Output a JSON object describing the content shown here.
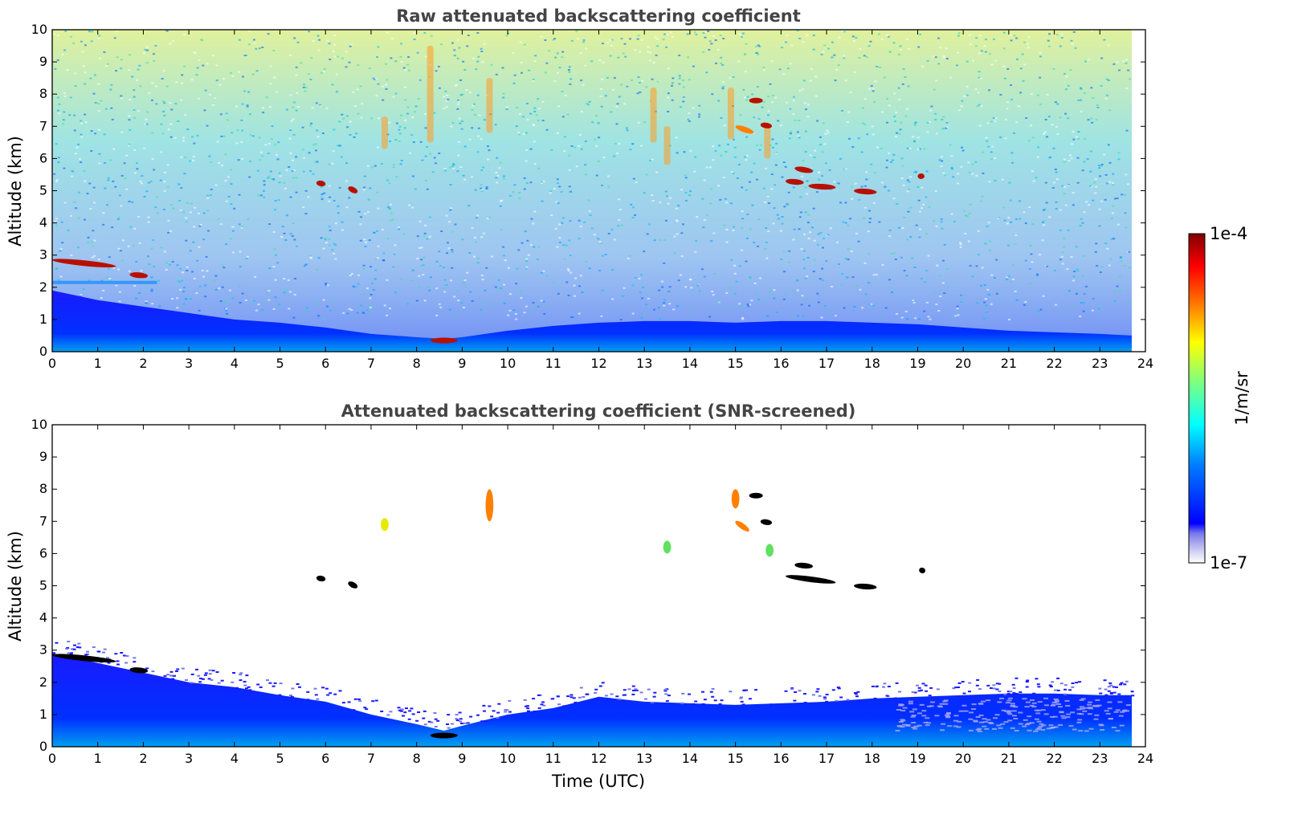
{
  "chart_data": [
    {
      "type": "heatmap",
      "title": "Raw attenuated backscattering coefficient",
      "xlabel": "",
      "ylabel": "Altitude (km)",
      "xlim": [
        0,
        24
      ],
      "ylim": [
        0,
        10
      ],
      "x_ticks": [
        0,
        1,
        2,
        3,
        4,
        5,
        6,
        7,
        8,
        9,
        10,
        11,
        12,
        13,
        14,
        15,
        16,
        17,
        18,
        19,
        20,
        21,
        22,
        23,
        24
      ],
      "y_ticks": [
        0,
        1,
        2,
        3,
        4,
        5,
        6,
        7,
        8,
        9,
        10
      ],
      "data_end_time": 23.7,
      "boundary_layer_top_km": [
        [
          0,
          1.9
        ],
        [
          1,
          1.6
        ],
        [
          2,
          1.4
        ],
        [
          3,
          1.2
        ],
        [
          4,
          1.0
        ],
        [
          5,
          0.9
        ],
        [
          6,
          0.75
        ],
        [
          7,
          0.55
        ],
        [
          8,
          0.45
        ],
        [
          8.6,
          0.4
        ],
        [
          9,
          0.45
        ],
        [
          10,
          0.65
        ],
        [
          11,
          0.8
        ],
        [
          12,
          0.9
        ],
        [
          13,
          0.95
        ],
        [
          14,
          0.95
        ],
        [
          15,
          0.9
        ],
        [
          16,
          0.95
        ],
        [
          17,
          0.95
        ],
        [
          18,
          0.9
        ],
        [
          19,
          0.85
        ],
        [
          20,
          0.75
        ],
        [
          21,
          0.65
        ],
        [
          22,
          0.6
        ],
        [
          23,
          0.55
        ],
        [
          23.7,
          0.5
        ]
      ],
      "aerosol_layers": [
        {
          "t0": 0.0,
          "t1": 2.3,
          "alt0_km": 2.1,
          "alt1_km": 2.2,
          "level": "blue"
        }
      ],
      "cloud_features": [
        {
          "t0": 0.0,
          "t1": 1.4,
          "alt0_km": 2.85,
          "alt1_km": 2.65,
          "level": "max"
        },
        {
          "t0": 1.7,
          "t1": 2.1,
          "alt0_km": 2.4,
          "alt1_km": 2.35,
          "level": "max"
        },
        {
          "t0": 5.8,
          "t1": 6.0,
          "alt0_km": 5.25,
          "alt1_km": 5.2,
          "level": "max"
        },
        {
          "t0": 6.5,
          "t1": 6.7,
          "alt0_km": 5.1,
          "alt1_km": 4.95,
          "level": "max"
        },
        {
          "t0": 8.3,
          "t1": 8.9,
          "alt0_km": 0.35,
          "alt1_km": 0.35,
          "level": "max"
        },
        {
          "t0": 15.3,
          "t1": 15.6,
          "alt0_km": 7.8,
          "alt1_km": 7.8,
          "level": "max"
        },
        {
          "t0": 15.0,
          "t1": 15.4,
          "alt0_km": 7.0,
          "alt1_km": 6.8,
          "level": "orange"
        },
        {
          "t0": 15.55,
          "t1": 15.8,
          "alt0_km": 7.05,
          "alt1_km": 7.0,
          "level": "max"
        },
        {
          "t0": 16.3,
          "t1": 16.7,
          "alt0_km": 5.7,
          "alt1_km": 5.6,
          "level": "max"
        },
        {
          "t0": 16.1,
          "t1": 16.5,
          "alt0_km": 5.3,
          "alt1_km": 5.25,
          "level": "max"
        },
        {
          "t0": 16.6,
          "t1": 17.2,
          "alt0_km": 5.15,
          "alt1_km": 5.1,
          "level": "max"
        },
        {
          "t0": 17.6,
          "t1": 18.1,
          "alt0_km": 5.0,
          "alt1_km": 4.95,
          "level": "max"
        },
        {
          "t0": 19.0,
          "t1": 19.15,
          "alt0_km": 5.45,
          "alt1_km": 5.45,
          "level": "max"
        }
      ],
      "precipitation_streaks": [
        {
          "t": 7.3,
          "alt0_km": 7.3,
          "alt1_km": 6.3
        },
        {
          "t": 8.3,
          "alt0_km": 9.5,
          "alt1_km": 6.5
        },
        {
          "t": 9.6,
          "alt0_km": 8.5,
          "alt1_km": 6.8
        },
        {
          "t": 13.2,
          "alt0_km": 8.2,
          "alt1_km": 6.5
        },
        {
          "t": 13.5,
          "alt0_km": 7.0,
          "alt1_km": 5.8
        },
        {
          "t": 14.9,
          "alt0_km": 8.2,
          "alt1_km": 6.6
        },
        {
          "t": 15.7,
          "alt0_km": 7.0,
          "alt1_km": 6.0
        }
      ]
    },
    {
      "type": "heatmap",
      "title": "Attenuated backscattering coefficient (SNR-screened)",
      "xlabel": "Time (UTC)",
      "ylabel": "Altitude (km)",
      "xlim": [
        0,
        24
      ],
      "ylim": [
        0,
        10
      ],
      "x_ticks": [
        0,
        1,
        2,
        3,
        4,
        5,
        6,
        7,
        8,
        9,
        10,
        11,
        12,
        13,
        14,
        15,
        16,
        17,
        18,
        19,
        20,
        21,
        22,
        23,
        24
      ],
      "y_ticks": [
        0,
        1,
        2,
        3,
        4,
        5,
        6,
        7,
        8,
        9,
        10
      ],
      "data_end_time": 23.7,
      "screened_top_km": [
        [
          0,
          2.9
        ],
        [
          1,
          2.6
        ],
        [
          2,
          2.3
        ],
        [
          3,
          2.0
        ],
        [
          4,
          1.85
        ],
        [
          5,
          1.6
        ],
        [
          6,
          1.4
        ],
        [
          7,
          1.0
        ],
        [
          8,
          0.7
        ],
        [
          8.6,
          0.5
        ],
        [
          9,
          0.65
        ],
        [
          10,
          1.0
        ],
        [
          11,
          1.2
        ],
        [
          12,
          1.55
        ],
        [
          13,
          1.4
        ],
        [
          14,
          1.35
        ],
        [
          15,
          1.3
        ],
        [
          16,
          1.35
        ],
        [
          17,
          1.4
        ],
        [
          18,
          1.5
        ],
        [
          19,
          1.55
        ],
        [
          20,
          1.6
        ],
        [
          21,
          1.65
        ],
        [
          22,
          1.65
        ],
        [
          23,
          1.6
        ],
        [
          23.7,
          1.6
        ]
      ],
      "cloud_features": [
        {
          "t0": 0.0,
          "t1": 1.4,
          "alt0_km": 2.85,
          "alt1_km": 2.65,
          "level": "over"
        },
        {
          "t0": 1.7,
          "t1": 2.1,
          "alt0_km": 2.4,
          "alt1_km": 2.35,
          "level": "over"
        },
        {
          "t0": 5.8,
          "t1": 6.0,
          "alt0_km": 5.25,
          "alt1_km": 5.2,
          "level": "over"
        },
        {
          "t0": 6.5,
          "t1": 6.7,
          "alt0_km": 5.1,
          "alt1_km": 4.95,
          "level": "over"
        },
        {
          "t0": 8.3,
          "t1": 8.9,
          "alt0_km": 0.35,
          "alt1_km": 0.35,
          "level": "over"
        },
        {
          "t0": 15.3,
          "t1": 15.6,
          "alt0_km": 7.8,
          "alt1_km": 7.8,
          "level": "over"
        },
        {
          "t0": 15.55,
          "t1": 15.8,
          "alt0_km": 7.0,
          "alt1_km": 6.95,
          "level": "over"
        },
        {
          "t0": 16.3,
          "t1": 16.7,
          "alt0_km": 5.65,
          "alt1_km": 5.6,
          "level": "over"
        },
        {
          "t0": 16.1,
          "t1": 17.2,
          "alt0_km": 5.3,
          "alt1_km": 5.1,
          "level": "over"
        },
        {
          "t0": 17.6,
          "t1": 18.1,
          "alt0_km": 5.0,
          "alt1_km": 4.95,
          "level": "over"
        },
        {
          "t0": 19.05,
          "t1": 19.15,
          "alt0_km": 5.5,
          "alt1_km": 5.45,
          "level": "over"
        },
        {
          "t0": 15.0,
          "t1": 15.3,
          "alt0_km": 7.0,
          "alt1_km": 6.7,
          "level": "orange"
        },
        {
          "t0": 14.95,
          "t1": 15.05,
          "alt0_km": 8.0,
          "alt1_km": 7.4,
          "level": "orange"
        },
        {
          "t0": 13.45,
          "t1": 13.55,
          "alt0_km": 6.4,
          "alt1_km": 6.0,
          "level": "green"
        },
        {
          "t0": 15.7,
          "t1": 15.8,
          "alt0_km": 6.3,
          "alt1_km": 5.9,
          "level": "green"
        },
        {
          "t0": 7.25,
          "t1": 7.35,
          "alt0_km": 7.1,
          "alt1_km": 6.7,
          "level": "yellow"
        },
        {
          "t0": 9.55,
          "t1": 9.65,
          "alt0_km": 8.0,
          "alt1_km": 7.0,
          "level": "orange"
        }
      ]
    }
  ],
  "colorbar": {
    "label": "1/m/sr",
    "min_label": "1e-7",
    "max_label": "1e-4",
    "colors": [
      "#00007f",
      "#0000ff",
      "#007fff",
      "#00ffff",
      "#7fff7f",
      "#ffff00",
      "#ff7f00",
      "#ff0000",
      "#7f0000"
    ],
    "low_end_colors": [
      "#ffffff",
      "#d8d8f5",
      "#a9a9ee",
      "#7777ea"
    ],
    "over_color": "#000000"
  }
}
